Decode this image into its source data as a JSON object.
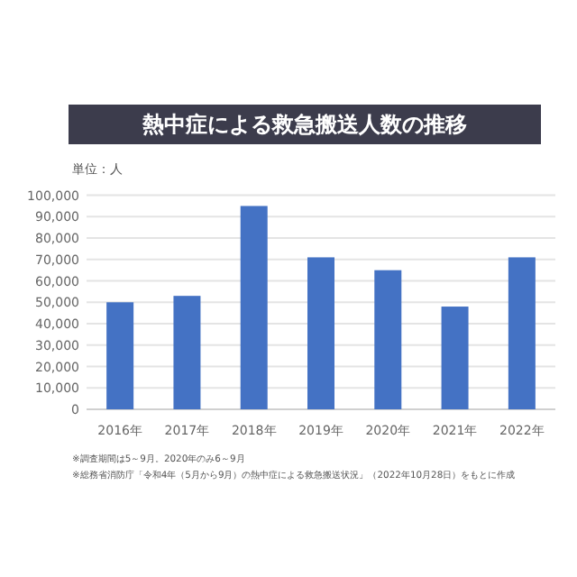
{
  "chart_data": {
    "type": "bar",
    "title": "熱中症による救急搬送人数の推移",
    "ylabel": "単位：人",
    "categories": [
      "2016年",
      "2017年",
      "2018年",
      "2019年",
      "2020年",
      "2021年",
      "2022年"
    ],
    "series": [
      {
        "color": "#4472c4",
        "values": [
          50000,
          53000,
          95000,
          71000,
          65000,
          48000,
          71000
        ]
      }
    ],
    "ylim": [
      0,
      100000
    ],
    "yticks": [
      0,
      {
        "value": 10000,
        "label": "10,000"
      },
      {
        "value": 20000,
        "label": "20,000"
      },
      {
        "value": 30000,
        "label": "30,000"
      },
      {
        "value": 40000,
        "label": "40,000"
      },
      {
        "value": 50000,
        "label": "50,000"
      },
      {
        "value": 60000,
        "label": "60,000"
      },
      {
        "value": 70000,
        "label": "70,000"
      },
      {
        "value": 80000,
        "label": "80,000"
      },
      {
        "value": 90000,
        "label": "90,000"
      },
      {
        "value": 100000,
        "label": "100,000"
      }
    ],
    "grid": "y",
    "annotations": [
      "※調査期間は5～9月。2020年のみ6～9月",
      "※総務省消防庁「令和4年（5月から9月）の熱中症による救急搬送状況」（2022年10月28日）をもとに作成"
    ]
  }
}
